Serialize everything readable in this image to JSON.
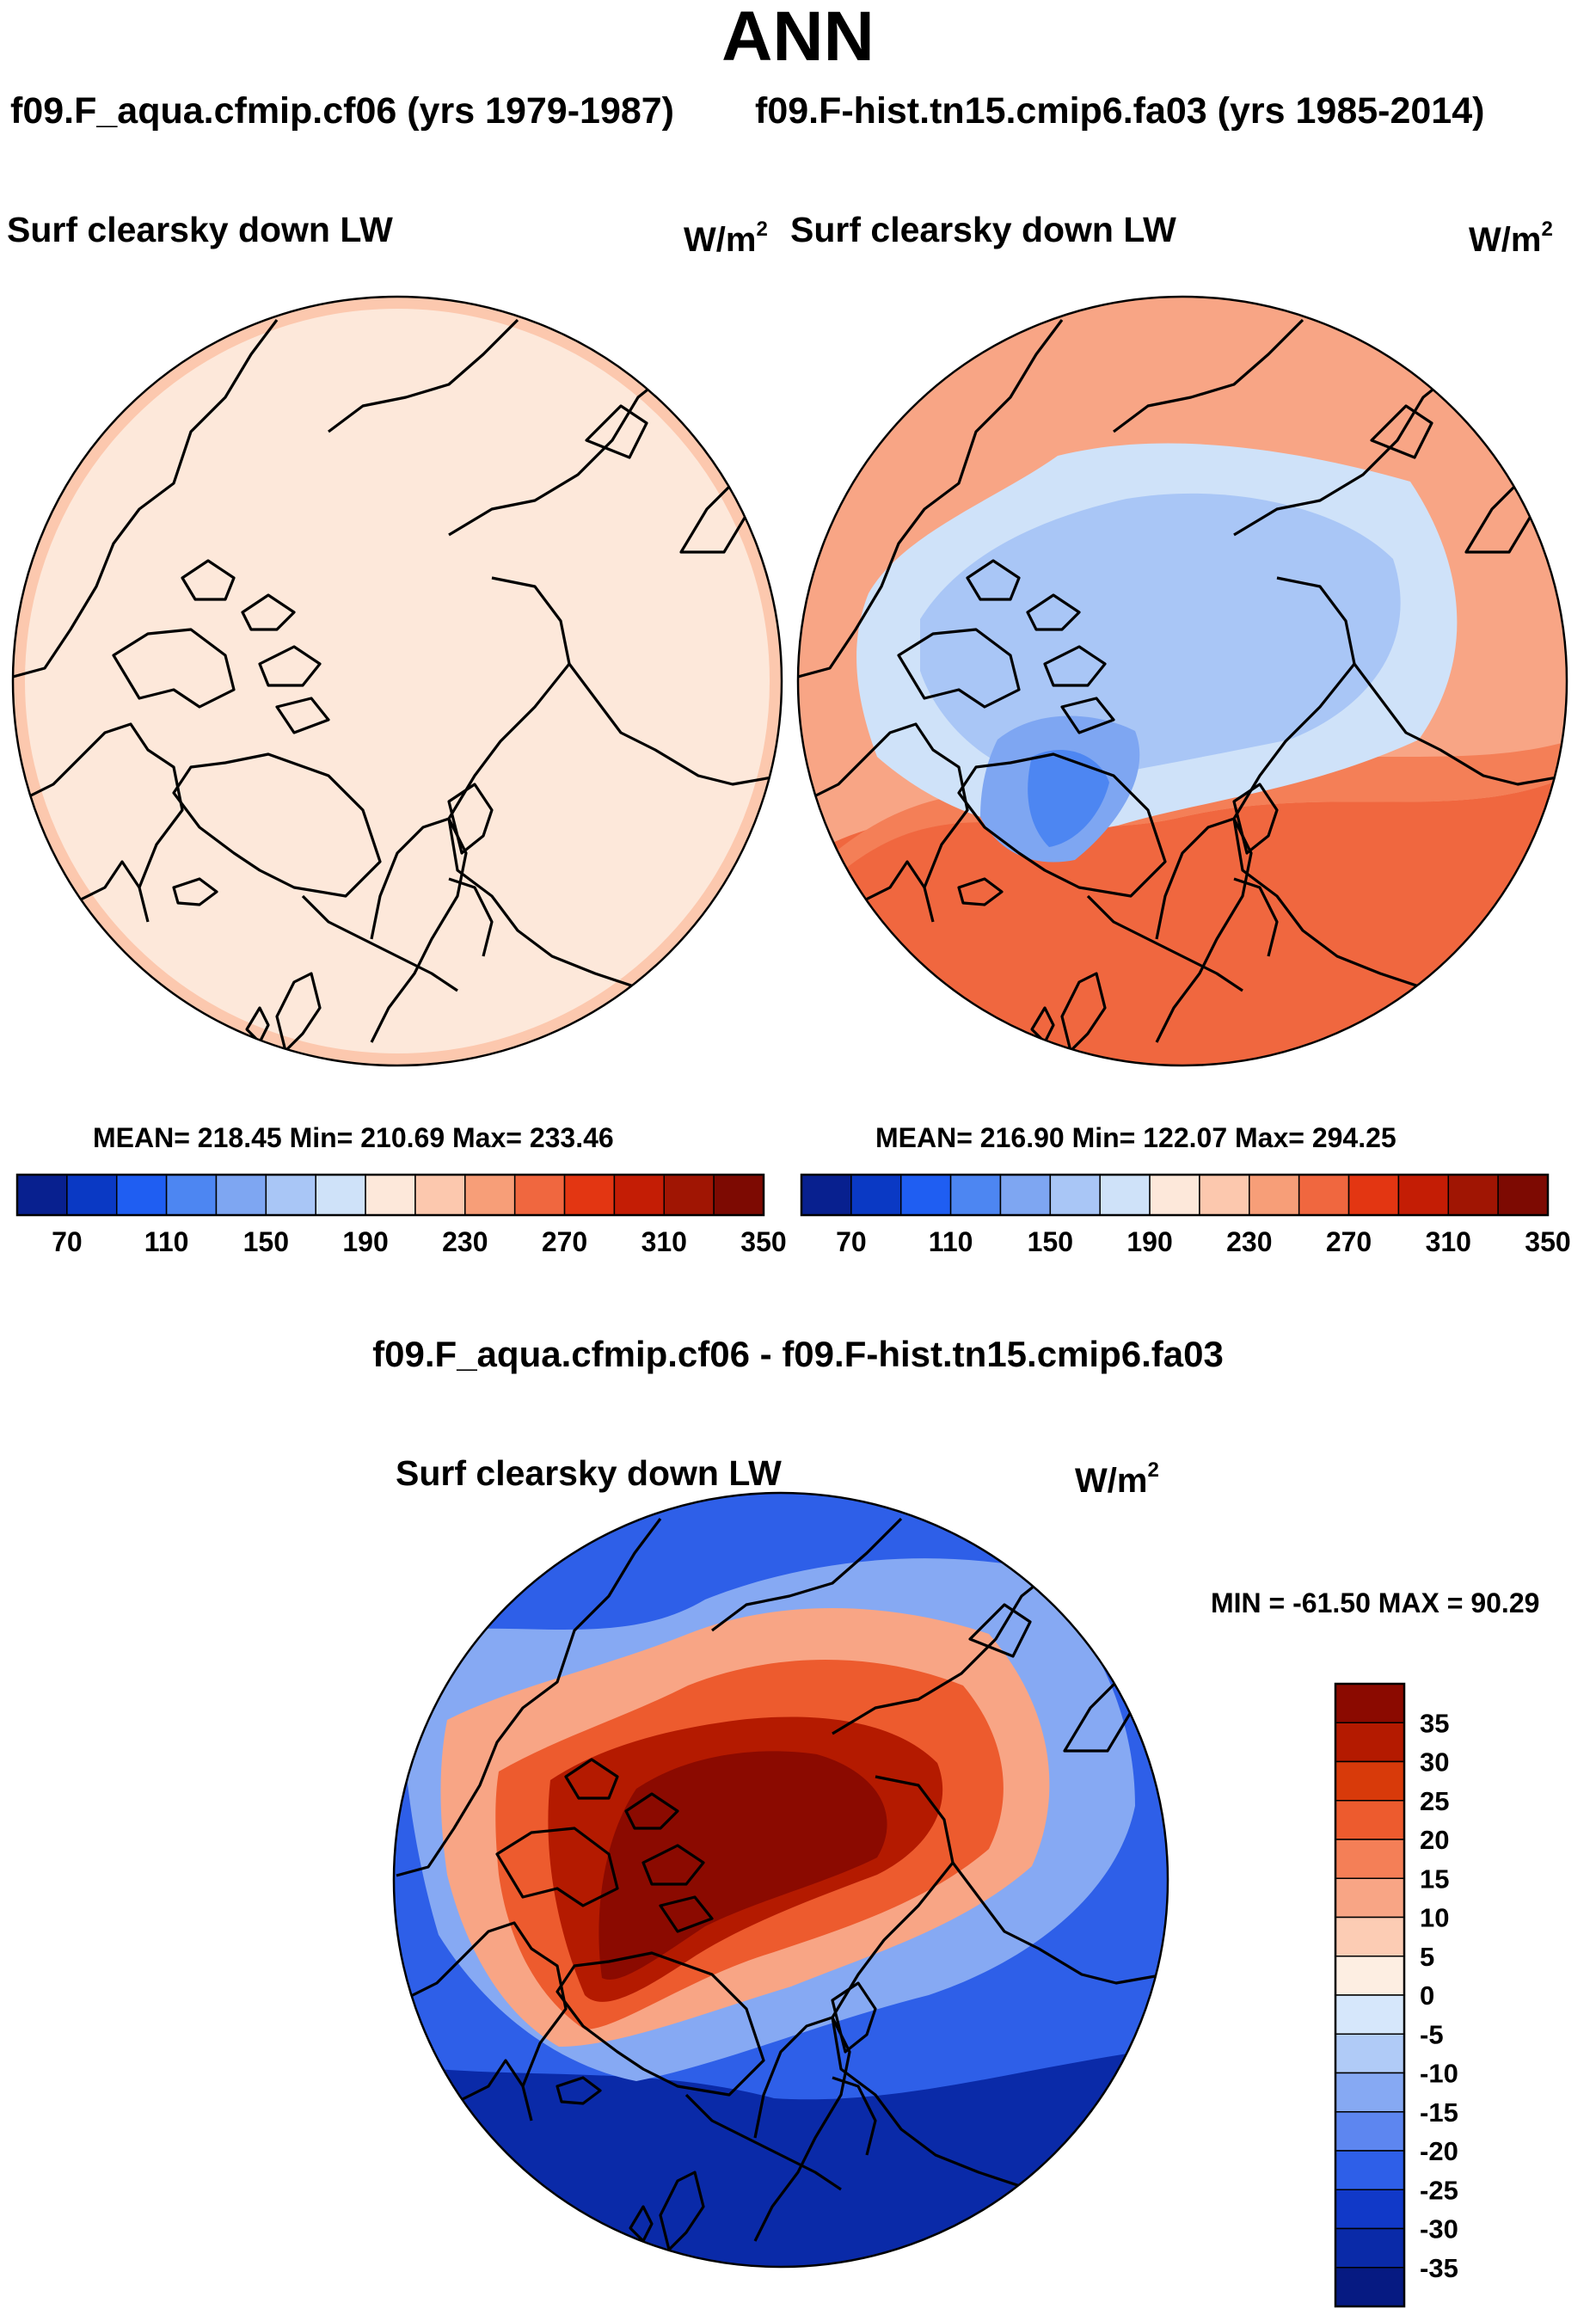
{
  "header": {
    "title": "ANN",
    "case_left": "f09.F_aqua.cfmip.cf06 (yrs 1979-1987)",
    "case_right": "f09.F-hist.tn15.cmip6.fa03 (yrs 1985-2014)",
    "diff_title": "f09.F_aqua.cfmip.cf06 - f09.F-hist.tn15.cmip6.fa03"
  },
  "panels": [
    {
      "variable": "Surf clearsky down LW",
      "units_base": "W/m",
      "units_exp": "2",
      "stats": "MEAN= 218.45  Min= 210.69  Max= 233.46"
    },
    {
      "variable": "Surf clearsky down LW",
      "units_base": "W/m",
      "units_exp": "2",
      "stats": "MEAN= 216.90  Min= 122.07  Max= 294.25"
    },
    {
      "variable": "Surf clearsky down LW",
      "units_base": "W/m",
      "units_exp": "2",
      "stats": "MIN = -61.50 MAX =  90.29"
    }
  ],
  "chart_data": [
    {
      "type": "heatmap",
      "title": "Surf clearsky down LW",
      "projection": "north-polar-stereographic",
      "units": "W/m2",
      "mean": 218.45,
      "min": 210.69,
      "max": 233.46,
      "colorbar": {
        "ticks": [
          "70",
          "110",
          "150",
          "190",
          "230",
          "270",
          "310",
          "350"
        ],
        "levels": [
          70,
          90,
          110,
          130,
          150,
          170,
          190,
          210,
          230,
          250,
          270,
          290,
          310,
          330,
          350
        ],
        "colors": [
          "#08208f",
          "#0a39c4",
          "#1f5ef2",
          "#4d86f2",
          "#7ea6f2",
          "#a9c6f6",
          "#cfe2f9",
          "#fde8da",
          "#fcc8ae",
          "#f79e78",
          "#f0673f",
          "#e33612",
          "#c41d05",
          "#a01503",
          "#7d0a02"
        ]
      }
    },
    {
      "type": "heatmap",
      "title": "Surf clearsky down LW",
      "projection": "north-polar-stereographic",
      "units": "W/m2",
      "mean": 216.9,
      "min": 122.07,
      "max": 294.25,
      "colorbar": {
        "ticks": [
          "70",
          "110",
          "150",
          "190",
          "230",
          "270",
          "310",
          "350"
        ],
        "levels": [
          70,
          90,
          110,
          130,
          150,
          170,
          190,
          210,
          230,
          250,
          270,
          290,
          310,
          330,
          350
        ],
        "colors": [
          "#08208f",
          "#0a39c4",
          "#1f5ef2",
          "#4d86f2",
          "#7ea6f2",
          "#a9c6f6",
          "#cfe2f9",
          "#fde8da",
          "#fcc8ae",
          "#f79e78",
          "#f0673f",
          "#e33612",
          "#c41d05",
          "#a01503",
          "#7d0a02"
        ]
      }
    },
    {
      "type": "heatmap",
      "title": "Surf clearsky down LW",
      "projection": "north-polar-stereographic",
      "units": "W/m2",
      "min": -61.5,
      "max": 90.29,
      "colorbar": {
        "orientation": "vertical",
        "ticks": [
          "35",
          "30",
          "25",
          "20",
          "15",
          "10",
          "5",
          "0",
          "-5",
          "-10",
          "-15",
          "-20",
          "-25",
          "-30",
          "-35"
        ],
        "levels": [
          35,
          30,
          25,
          20,
          15,
          10,
          5,
          0,
          -5,
          -10,
          -15,
          -20,
          -25,
          -30,
          -35
        ],
        "colors": [
          "#8b0a00",
          "#b41a00",
          "#d83a0a",
          "#ed5b2e",
          "#f47f57",
          "#f8a585",
          "#fcccb4",
          "#fdeee2",
          "#d6e7fb",
          "#b0cbf7",
          "#86a9f3",
          "#5d86f0",
          "#2e5fe8",
          "#1139c8",
          "#0a2aa8",
          "#061a82"
        ]
      }
    }
  ]
}
